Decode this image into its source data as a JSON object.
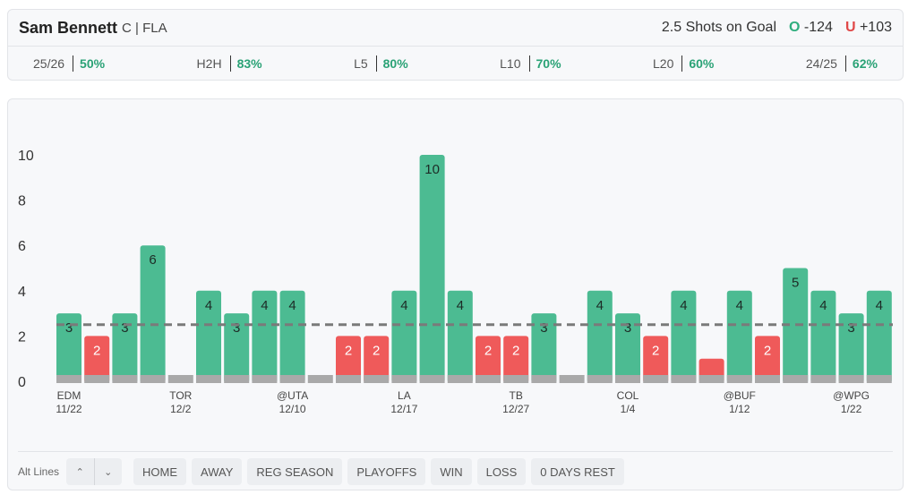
{
  "header": {
    "player": "Sam Bennett",
    "meta": "C | FLA",
    "line": 2.5,
    "market": "Shots on Goal",
    "over": {
      "label": "O",
      "odds": "-124"
    },
    "under": {
      "label": "U",
      "odds": "+103"
    }
  },
  "stats": [
    {
      "label": "25/26",
      "value": "50%"
    },
    {
      "label": "H2H",
      "value": "83%"
    },
    {
      "label": "L5",
      "value": "80%"
    },
    {
      "label": "L10",
      "value": "70%"
    },
    {
      "label": "L20",
      "value": "60%"
    },
    {
      "label": "24/25",
      "value": "62%"
    }
  ],
  "chart_data": {
    "type": "bar",
    "categories": [
      "EDM",
      null,
      null,
      null,
      "TOR",
      null,
      null,
      null,
      "@UTA",
      null,
      null,
      null,
      "LA",
      null,
      null,
      null,
      "TB",
      null,
      null,
      null,
      "COL",
      null,
      null,
      null,
      "@BUF",
      null,
      null,
      null,
      "@WPG",
      null
    ],
    "dates": [
      "11/22",
      null,
      null,
      null,
      "12/2",
      null,
      null,
      null,
      "12/10",
      null,
      null,
      null,
      "12/17",
      null,
      null,
      null,
      "12/27",
      null,
      null,
      null,
      "1/4",
      null,
      null,
      null,
      "1/12",
      null,
      null,
      null,
      "1/22",
      null
    ],
    "values": [
      3,
      2,
      3,
      6,
      0,
      4,
      3,
      4,
      4,
      0,
      2,
      2,
      4,
      10,
      4,
      2,
      2,
      3,
      0,
      4,
      3,
      2,
      4,
      1,
      4,
      2,
      5,
      4,
      3,
      4
    ],
    "over_color": "#4cbb92",
    "under_color": "#ef5a5a",
    "ylim": [
      0,
      10
    ],
    "yticks": [
      0,
      2,
      4,
      6,
      8,
      10
    ]
  },
  "controls": {
    "alt_lines": "Alt Lines",
    "filters": [
      "HOME",
      "AWAY",
      "REG SEASON",
      "PLAYOFFS",
      "WIN",
      "LOSS",
      "0 DAYS REST"
    ]
  }
}
